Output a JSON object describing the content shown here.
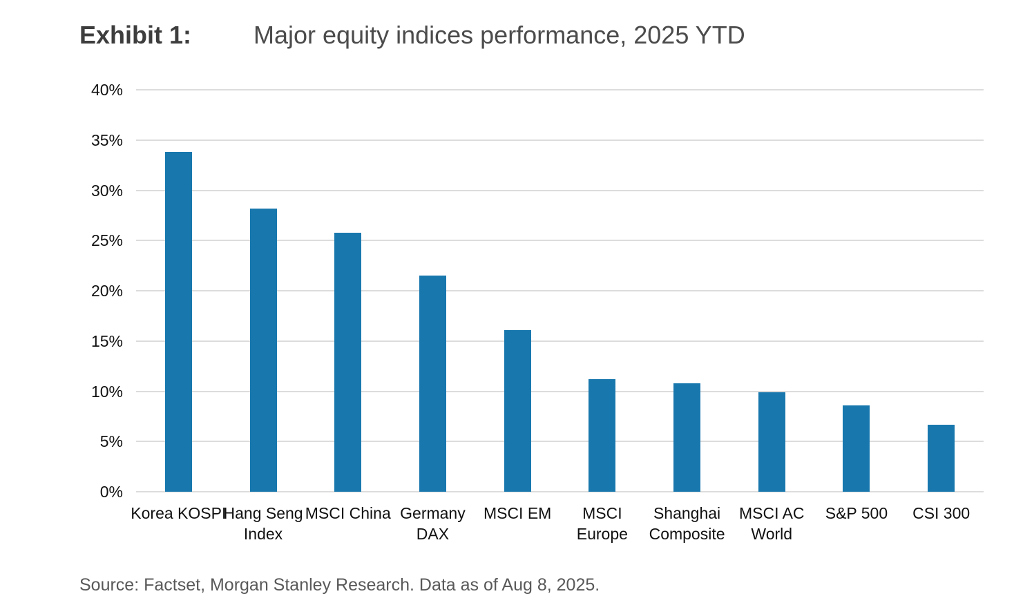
{
  "header": {
    "exhibit_label": "Exhibit 1:",
    "title": "Major equity indices performance, 2025 YTD"
  },
  "source": {
    "text": "Source: Factset, Morgan Stanley Research. Data as of Aug 8, 2025."
  },
  "chart_data": {
    "type": "bar",
    "title": "Major equity indices performance, 2025 YTD",
    "categories": [
      "Korea KOSPI",
      "Hang Seng Index",
      "MSCI China",
      "Germany DAX",
      "MSCI EM",
      "MSCI Europe",
      "Shanghai Composite",
      "MSCI AC World",
      "S&P 500",
      "CSI 300"
    ],
    "category_label_lines": [
      [
        "Korea KOSPI"
      ],
      [
        "Hang Seng",
        "Index"
      ],
      [
        "MSCI China"
      ],
      [
        "Germany",
        "DAX"
      ],
      [
        "MSCI EM"
      ],
      [
        "MSCI",
        "Europe"
      ],
      [
        "Shanghai",
        "Composite"
      ],
      [
        "MSCI AC",
        "World"
      ],
      [
        "S&P 500"
      ],
      [
        "CSI 300"
      ]
    ],
    "values": [
      33.8,
      28.2,
      25.8,
      21.5,
      16.1,
      11.2,
      10.8,
      9.9,
      8.6,
      6.7
    ],
    "unit": "%",
    "xlabel": "",
    "ylabel": "",
    "ylim": [
      0,
      40
    ],
    "ytick_step": 5,
    "yticks": [
      {
        "value": 0,
        "label": "0%"
      },
      {
        "value": 5,
        "label": "5%"
      },
      {
        "value": 10,
        "label": "10%"
      },
      {
        "value": 15,
        "label": "15%"
      },
      {
        "value": 20,
        "label": "20%"
      },
      {
        "value": 25,
        "label": "25%"
      },
      {
        "value": 30,
        "label": "30%"
      },
      {
        "value": 35,
        "label": "35%"
      },
      {
        "value": 40,
        "label": "40%"
      }
    ],
    "grid": true,
    "legend": false,
    "bar_color": "#1878AE",
    "gridline_color": "#DCDCDC"
  }
}
